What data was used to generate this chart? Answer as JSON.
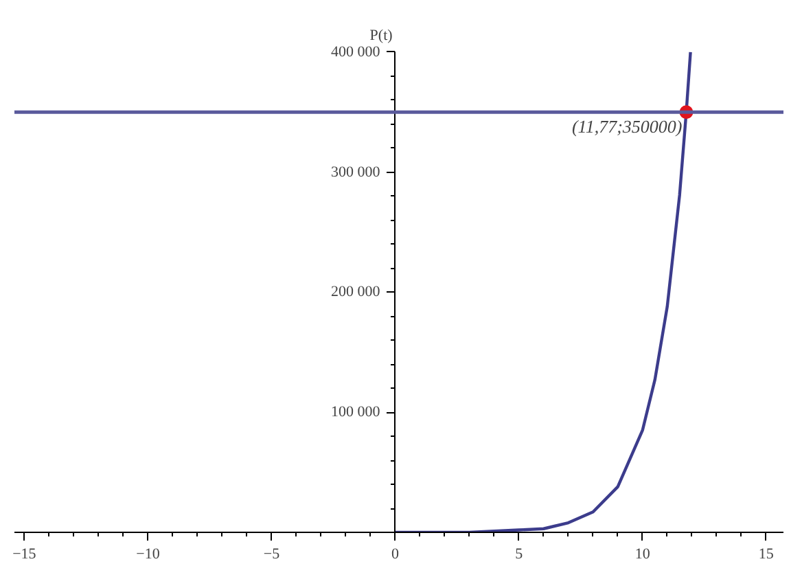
{
  "chart_data": {
    "type": "line",
    "ylabel": "P(t)",
    "x": [
      0,
      2,
      3,
      4,
      5,
      6,
      7,
      8,
      9,
      10,
      10.5,
      11,
      11.5,
      11.77,
      11.94
    ],
    "series": [
      {
        "color": "#3c3c8c",
        "values": [
          0,
          0,
          0,
          1000,
          2000,
          3000,
          8000,
          17000,
          38000,
          85000,
          127000,
          188000,
          281000,
          350000,
          400000
        ]
      },
      {
        "type": "scatter",
        "marker": "circle",
        "color": "#e0141e",
        "x": [
          11.77
        ],
        "values": [
          350000
        ]
      }
    ],
    "xlim": [
      -15.4,
      15.7
    ],
    "ylim": [
      0,
      400000
    ],
    "xticks": [
      {
        "value": -15,
        "label": "−15"
      },
      {
        "value": -10,
        "label": "−10"
      },
      {
        "value": -5,
        "label": "−5"
      },
      0,
      5,
      10,
      15
    ],
    "yticks": [
      {
        "value": 100000,
        "label": "100 000"
      },
      {
        "value": 200000,
        "label": "200 000"
      },
      {
        "value": 300000,
        "label": "300 000"
      },
      {
        "value": 400000,
        "label": "400 000"
      }
    ],
    "ref_lines": [
      {
        "axis": "y",
        "value": 350000,
        "color": "#5a5a9c"
      }
    ],
    "annotations": [
      {
        "text": "(11,77;350000)",
        "x": 11.77,
        "y": 350000
      }
    ],
    "grid": false,
    "marker": "none",
    "line_style": "solid"
  }
}
